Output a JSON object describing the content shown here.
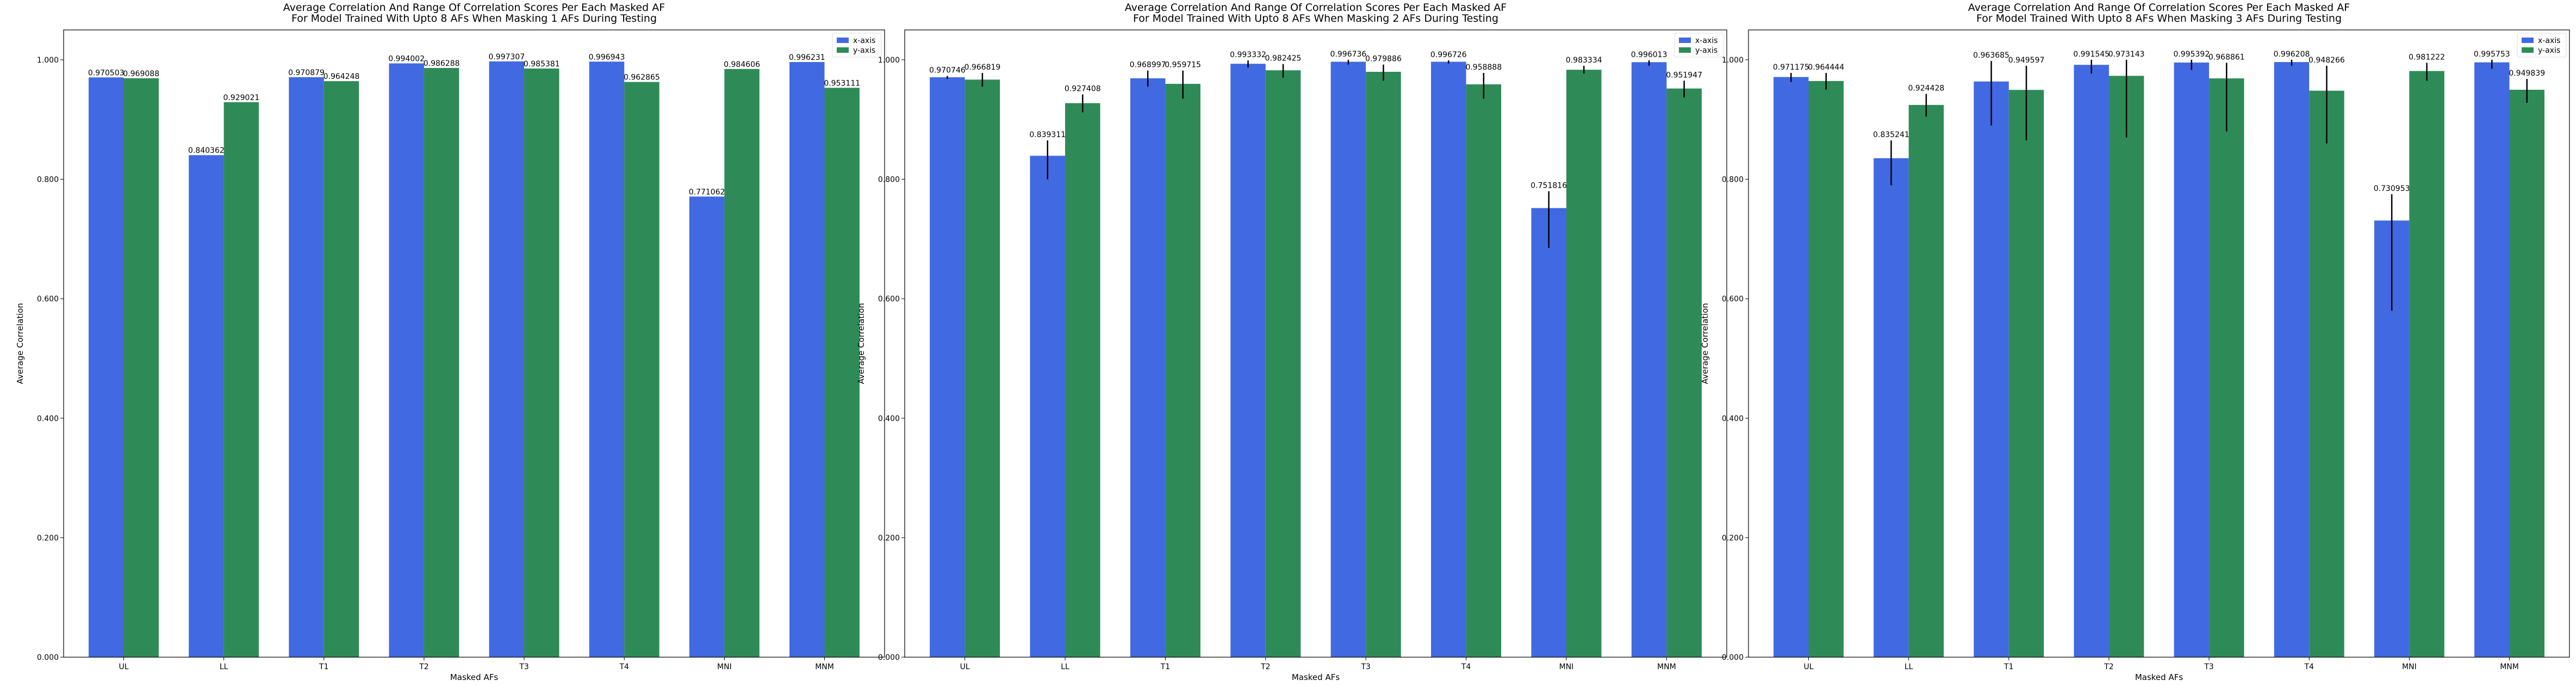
{
  "colors": {
    "x": "#4169e1",
    "y": "#2e8b57",
    "error": "#000000"
  },
  "chart_data": [
    {
      "type": "bar",
      "title": [
        "Average Correlation And Range Of Correlation Scores Per Each Masked AF",
        "For Model Trained With Upto 8 AFs When Masking 1 AFs During Testing"
      ],
      "xlabel": "Masked AFs",
      "ylabel": "Average Correlation",
      "ylim": [
        0,
        1.05
      ],
      "yticks": [
        "0.000",
        "0.200",
        "0.400",
        "0.600",
        "0.800",
        "1.000"
      ],
      "categories": [
        "UL",
        "LL",
        "T1",
        "T2",
        "T3",
        "T4",
        "MNI",
        "MNM"
      ],
      "legend": "top-right",
      "series": [
        {
          "name": "x-axis",
          "color_key": "x",
          "values": [
            0.970503,
            0.840362,
            0.970879,
            0.994002,
            0.997307,
            0.996943,
            0.771062,
            0.996231
          ],
          "labels": [
            "0.970503",
            "0.840362",
            "0.970879",
            "0.994002",
            "0.997307",
            "0.996943",
            "0.771062",
            "0.996231"
          ]
        },
        {
          "name": "y-axis",
          "color_key": "y",
          "values": [
            0.969088,
            0.929021,
            0.964248,
            0.986288,
            0.985381,
            0.962865,
            0.984606,
            0.953111
          ],
          "labels": [
            "0.969088",
            "0.929021",
            "0.964248",
            "0.986288",
            "0.985381",
            "0.962865",
            "0.984606",
            "0.953111"
          ]
        }
      ]
    },
    {
      "type": "bar",
      "title": [
        "Average Correlation And Range Of Correlation Scores Per Each Masked AF",
        "For Model Trained With Upto 8 AFs When Masking 2 AFs During Testing"
      ],
      "xlabel": "Masked AFs",
      "ylabel": "Average Correlation",
      "ylim": [
        0,
        1.05
      ],
      "yticks": [
        "0.000",
        "0.200",
        "0.400",
        "0.600",
        "0.800",
        "1.000"
      ],
      "categories": [
        "UL",
        "LL",
        "T1",
        "T2",
        "T3",
        "T4",
        "MNI",
        "MNM"
      ],
      "legend": "top-right",
      "series": [
        {
          "name": "x-axis",
          "color_key": "x",
          "values": [
            0.970746,
            0.839311,
            0.968997,
            0.993332,
            0.996736,
            0.996726,
            0.751816,
            0.996013
          ],
          "labels": [
            "0.970746",
            "0.839311",
            "0.968997",
            "0.993332",
            "0.996736",
            "0.996726",
            "0.751816",
            "0.996013"
          ],
          "error_range": [
            [
              0.968,
              0.973
            ],
            [
              0.8,
              0.865
            ],
            [
              0.955,
              0.982
            ],
            [
              0.987,
              0.999
            ],
            [
              0.992,
              1.0
            ],
            [
              0.994,
              0.999
            ],
            [
              0.685,
              0.78
            ],
            [
              0.99,
              0.999
            ]
          ]
        },
        {
          "name": "y-axis",
          "color_key": "y",
          "values": [
            0.966819,
            0.927408,
            0.959715,
            0.982425,
            0.979886,
            0.958888,
            0.983334,
            0.951947
          ],
          "labels": [
            "0.966819",
            "0.927408",
            "0.959715",
            "0.982425",
            "0.979886",
            "0.958888",
            "0.983334",
            "0.951947"
          ],
          "error_range": [
            [
              0.955,
              0.978
            ],
            [
              0.912,
              0.942
            ],
            [
              0.935,
              0.982
            ],
            [
              0.97,
              0.993
            ],
            [
              0.965,
              0.992
            ],
            [
              0.935,
              0.978
            ],
            [
              0.977,
              0.99
            ],
            [
              0.937,
              0.965
            ]
          ]
        }
      ]
    },
    {
      "type": "bar",
      "title": [
        "Average Correlation And Range Of Correlation Scores Per Each Masked AF",
        "For Model Trained With Upto 8 AFs When Masking 3 AFs During Testing"
      ],
      "xlabel": "Masked AFs",
      "ylabel": "Average Correlation",
      "ylim": [
        0,
        1.05
      ],
      "yticks": [
        "0.000",
        "0.200",
        "0.400",
        "0.600",
        "0.800",
        "1.000"
      ],
      "categories": [
        "UL",
        "LL",
        "T1",
        "T2",
        "T3",
        "T4",
        "MNI",
        "MNM"
      ],
      "legend": "top-right",
      "series": [
        {
          "name": "x-axis",
          "color_key": "x",
          "values": [
            0.971175,
            0.835241,
            0.963685,
            0.991545,
            0.995392,
            0.996208,
            0.730953,
            0.995753
          ],
          "labels": [
            "0.971175",
            "0.835241",
            "0.963685",
            "0.991545",
            "0.995392",
            "0.996208",
            "0.730953",
            "0.995753"
          ],
          "error_range": [
            [
              0.963,
              0.978
            ],
            [
              0.79,
              0.865
            ],
            [
              0.89,
              0.998
            ],
            [
              0.977,
              1.0
            ],
            [
              0.983,
              1.0
            ],
            [
              0.99,
              1.0
            ],
            [
              0.58,
              0.775
            ],
            [
              0.985,
              1.0
            ]
          ]
        },
        {
          "name": "y-axis",
          "color_key": "y",
          "values": [
            0.964444,
            0.924428,
            0.949597,
            0.973143,
            0.968861,
            0.948266,
            0.981222,
            0.949839
          ],
          "labels": [
            "0.964444",
            "0.924428",
            "0.949597",
            "0.973143",
            "0.968861",
            "0.948266",
            "0.981222",
            "0.949839"
          ],
          "error_range": [
            [
              0.95,
              0.978
            ],
            [
              0.905,
              0.943
            ],
            [
              0.865,
              0.99
            ],
            [
              0.87,
              1.0
            ],
            [
              0.88,
              0.995
            ],
            [
              0.86,
              0.99
            ],
            [
              0.965,
              0.995
            ],
            [
              0.928,
              0.968
            ]
          ]
        }
      ]
    }
  ]
}
